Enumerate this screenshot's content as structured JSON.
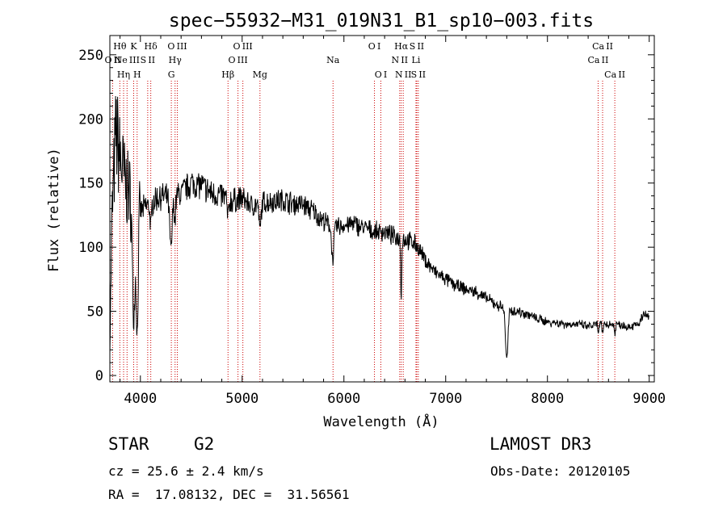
{
  "chart_data": {
    "type": "line",
    "title": "spec−55932−M31_019N31_B1_sp10−003.fits",
    "xlabel": "Wavelength (Å)",
    "ylabel": "Flux (relative)",
    "xlim": [
      3700,
      9050
    ],
    "ylim": [
      -5,
      265
    ],
    "xticks": [
      4000,
      5000,
      6000,
      7000,
      8000,
      9000
    ],
    "yticks": [
      0,
      50,
      100,
      150,
      200,
      250
    ],
    "series": [
      {
        "name": "flux",
        "continuum": [
          [
            3700,
            20
          ],
          [
            3720,
            120
          ],
          [
            3760,
            190
          ],
          [
            3800,
            170
          ],
          [
            3850,
            150
          ],
          [
            3900,
            140
          ],
          [
            3950,
            130
          ],
          [
            4000,
            128
          ],
          [
            4100,
            135
          ],
          [
            4200,
            140
          ],
          [
            4300,
            138
          ],
          [
            4400,
            142
          ],
          [
            4500,
            150
          ],
          [
            4600,
            148
          ],
          [
            4700,
            142
          ],
          [
            4800,
            140
          ],
          [
            4900,
            136
          ],
          [
            5000,
            138
          ],
          [
            5100,
            132
          ],
          [
            5200,
            135
          ],
          [
            5300,
            136
          ],
          [
            5400,
            137
          ],
          [
            5500,
            134
          ],
          [
            5600,
            133
          ],
          [
            5700,
            128
          ],
          [
            5800,
            120
          ],
          [
            5900,
            115
          ],
          [
            6000,
            117
          ],
          [
            6100,
            118
          ],
          [
            6200,
            115
          ],
          [
            6300,
            112
          ],
          [
            6400,
            112
          ],
          [
            6500,
            108
          ],
          [
            6600,
            106
          ],
          [
            6700,
            103
          ],
          [
            6800,
            90
          ],
          [
            6900,
            80
          ],
          [
            7000,
            75
          ],
          [
            7100,
            70
          ],
          [
            7200,
            67
          ],
          [
            7300,
            65
          ],
          [
            7400,
            60
          ],
          [
            7500,
            55
          ],
          [
            7600,
            52
          ],
          [
            7700,
            50
          ],
          [
            7800,
            48
          ],
          [
            7900,
            44
          ],
          [
            8000,
            42
          ],
          [
            8100,
            41
          ],
          [
            8200,
            40
          ],
          [
            8300,
            40
          ],
          [
            8400,
            38
          ],
          [
            8500,
            40
          ],
          [
            8600,
            40
          ],
          [
            8700,
            40
          ],
          [
            8800,
            38
          ],
          [
            8900,
            40
          ],
          [
            8950,
            48
          ],
          [
            9000,
            45
          ]
        ],
        "absorption_features": [
          [
            3934,
            90,
            12
          ],
          [
            3968,
            95,
            10
          ],
          [
            4102,
            20,
            8
          ],
          [
            4300,
            40,
            12
          ],
          [
            4340,
            20,
            6
          ],
          [
            4861,
            15,
            8
          ],
          [
            5175,
            20,
            10
          ],
          [
            5890,
            25,
            10
          ],
          [
            6563,
            45,
            5
          ],
          [
            7600,
            40,
            12
          ],
          [
            8500,
            8,
            5
          ],
          [
            8542,
            8,
            5
          ],
          [
            8662,
            8,
            5
          ]
        ]
      }
    ],
    "lines": [
      {
        "label": "O II",
        "wavelength": 3727,
        "row": 1
      },
      {
        "label": "Hθ",
        "wavelength": 3798,
        "row": 0
      },
      {
        "label": "Hη",
        "wavelength": 3835,
        "row": 2
      },
      {
        "label": "Ne III",
        "wavelength": 3869,
        "row": 1
      },
      {
        "label": "K",
        "wavelength": 3934,
        "row": 0
      },
      {
        "label": "H",
        "wavelength": 3968,
        "row": 2
      },
      {
        "label": "S II",
        "wavelength": 4072,
        "row": 1
      },
      {
        "label": "Hδ",
        "wavelength": 4102,
        "row": 0
      },
      {
        "label": "G",
        "wavelength": 4304,
        "row": 2
      },
      {
        "label": "Hγ",
        "wavelength": 4341,
        "row": 1
      },
      {
        "label": "O III",
        "wavelength": 4363,
        "row": 0
      },
      {
        "label": "Hβ",
        "wavelength": 4861,
        "row": 2
      },
      {
        "label": "O III",
        "wavelength": 4959,
        "row": 1
      },
      {
        "label": "O III",
        "wavelength": 5007,
        "row": 0
      },
      {
        "label": "Mg",
        "wavelength": 5175,
        "row": 2
      },
      {
        "label": "Na",
        "wavelength": 5893,
        "row": 1
      },
      {
        "label": "O I",
        "wavelength": 6300,
        "row": 0
      },
      {
        "label": "O I",
        "wavelength": 6363,
        "row": 2
      },
      {
        "label": "N II",
        "wavelength": 6548,
        "row": 1
      },
      {
        "label": "Hα",
        "wavelength": 6563,
        "row": 0
      },
      {
        "label": "N II",
        "wavelength": 6583,
        "row": 2
      },
      {
        "label": "Li",
        "wavelength": 6708,
        "row": 1
      },
      {
        "label": "S II",
        "wavelength": 6716,
        "row": 0
      },
      {
        "label": "S II",
        "wavelength": 6731,
        "row": 2
      },
      {
        "label": "Ca II",
        "wavelength": 8498,
        "row": 1
      },
      {
        "label": "Ca II",
        "wavelength": 8542,
        "row": 0
      },
      {
        "label": "Ca II",
        "wavelength": 8662,
        "row": 2
      }
    ]
  },
  "info": {
    "class_label": "STAR",
    "subclass": "G2",
    "survey": "LAMOST DR3",
    "cz_text": "cz = 25.6 ± 2.4 km/s",
    "obs_date": "Obs-Date: 20120105",
    "radec_text": "RA =  17.08132, DEC =  31.56561"
  },
  "colors": {
    "spectrum": "#000000",
    "line_markers": "#cc0000",
    "axes": "#000000",
    "background": "#ffffff"
  }
}
